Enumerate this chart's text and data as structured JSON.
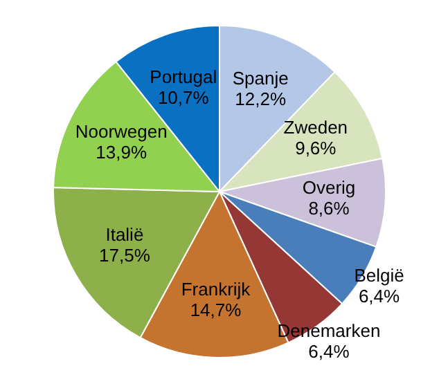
{
  "chart_data": {
    "type": "pie",
    "categories": [
      "Spanje",
      "Zweden",
      "Overig",
      "België",
      "Denemarken",
      "Frankrijk",
      "Italië",
      "Noorwegen",
      "Portugal"
    ],
    "values": [
      12.2,
      9.6,
      8.6,
      6.4,
      6.4,
      14.7,
      17.5,
      13.9,
      10.7
    ],
    "value_labels": [
      "12,2%",
      "9,6%",
      "8,6%",
      "6,4%",
      "6,4%",
      "14,7%",
      "17,5%",
      "13,9%",
      "10,7%"
    ],
    "colors": [
      "#b4c7e7",
      "#d7e4bd",
      "#ccc1da",
      "#4a7ebb",
      "#953735",
      "#c5742f",
      "#8eb04b",
      "#92d050",
      "#0a70c2"
    ]
  }
}
